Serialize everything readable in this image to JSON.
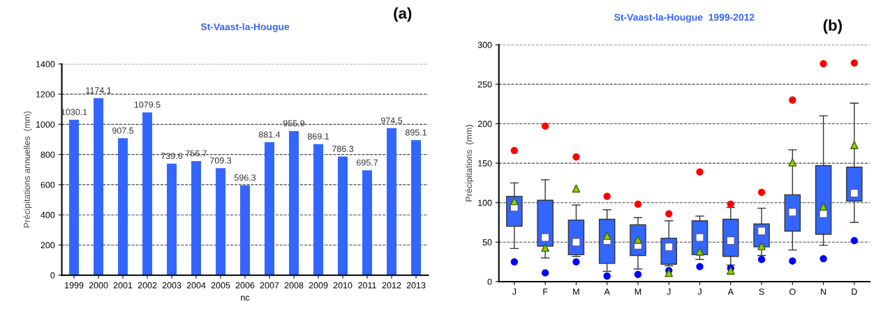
{
  "chart_data": [
    {
      "type": "bar",
      "title": "St-Vaast-la-Hougue",
      "ylabel": "Précipitations annuelles  (mm)",
      "categories": [
        "1999",
        "2000",
        "2001",
        "2002",
        "2003",
        "2004",
        "2005",
        "2006",
        "2007",
        "2008",
        "2009",
        "2010",
        "2011",
        "2012",
        "2013"
      ],
      "values": [
        1030.1,
        1174.1,
        907.5,
        1079.5,
        739.6,
        756.7,
        709.3,
        596.3,
        881.4,
        955.9,
        869.1,
        786.3,
        695.7,
        974.5,
        895.1
      ],
      "color": "#3366ff",
      "ylim": [
        0,
        1400
      ],
      "yticks": [
        0,
        200,
        400,
        600,
        800,
        1000,
        1200,
        1400
      ],
      "grid": "y",
      "data_labels": true,
      "annotations": [
        "(a)",
        "nc"
      ]
    },
    {
      "type": "box",
      "title": "St-Vaast-la-Hougue  1999-2012",
      "ylabel": "Précipitations  (mm)",
      "categories": [
        "J",
        "F",
        "M",
        "A",
        "M",
        "J",
        "J",
        "A",
        "S",
        "O",
        "N",
        "D"
      ],
      "color": "#3366ff",
      "ylim": [
        0,
        300
      ],
      "yticks": [
        0,
        50,
        100,
        150,
        200,
        250,
        300
      ],
      "grid": "y",
      "boxes": [
        {
          "low": 42,
          "q1": 70,
          "median": 94,
          "q3": 108,
          "high": 125,
          "mean": 94
        },
        {
          "low": 30,
          "q1": 45,
          "median": 56,
          "q3": 103,
          "high": 129,
          "mean": 56
        },
        {
          "low": 32,
          "q1": 34,
          "median": 50,
          "q3": 78,
          "high": 97,
          "mean": 50
        },
        {
          "low": 13,
          "q1": 23,
          "median": 52,
          "q3": 79,
          "high": 91,
          "mean": 52
        },
        {
          "low": 16,
          "q1": 33,
          "median": 46,
          "q3": 72,
          "high": 81,
          "mean": 46
        },
        {
          "low": 20,
          "q1": 22,
          "median": 44,
          "q3": 55,
          "high": 77,
          "mean": 44
        },
        {
          "low": 28,
          "q1": 34,
          "median": 56,
          "q3": 77,
          "high": 83,
          "mean": 56
        },
        {
          "low": 21,
          "q1": 32,
          "median": 52,
          "q3": 79,
          "high": 94,
          "mean": 52
        },
        {
          "low": 33,
          "q1": 44,
          "median": 64,
          "q3": 73,
          "high": 93,
          "mean": 64
        },
        {
          "low": 40,
          "q1": 64,
          "median": 88,
          "q3": 110,
          "high": 167,
          "mean": 88
        },
        {
          "low": 46,
          "q1": 60,
          "median": 86,
          "q3": 147,
          "high": 210,
          "mean": 86
        },
        {
          "low": 75,
          "q1": 102,
          "median": 112,
          "q3": 145,
          "high": 226,
          "mean": 112
        }
      ],
      "series": [
        {
          "type": "scatter",
          "marker": "circle",
          "color": "#ff0000",
          "values": [
            166,
            197,
            158,
            108,
            98,
            86,
            139,
            98,
            113,
            230,
            276,
            277
          ]
        },
        {
          "type": "scatter",
          "marker": "circle",
          "color": "#0000ff",
          "values": [
            25,
            11,
            25,
            7,
            9,
            14,
            19,
            17,
            28,
            26,
            29,
            52
          ]
        },
        {
          "type": "scatter",
          "marker": "triangle",
          "color": "#99cc00",
          "values": [
            102,
            43,
            118,
            58,
            53,
            11,
            38,
            14,
            45,
            151,
            95,
            173
          ]
        }
      ],
      "annotations": [
        "(b)"
      ]
    }
  ]
}
